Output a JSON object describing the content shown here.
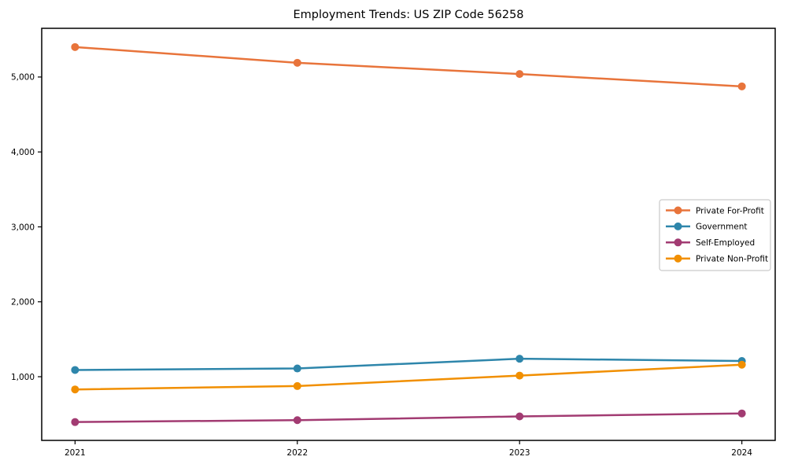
{
  "chart_data": {
    "type": "line",
    "title": "Employment Trends: US ZIP Code 56258",
    "xlabel": "",
    "ylabel": "",
    "x": [
      2021,
      2022,
      2023,
      2024
    ],
    "x_tick_labels": [
      "2021",
      "2022",
      "2023",
      "2024"
    ],
    "y_ticks": [
      1000,
      2000,
      3000,
      4000,
      5000
    ],
    "y_tick_labels": [
      "1,000",
      "2,000",
      "3,000",
      "4,000",
      "5,000"
    ],
    "xlim": [
      2020.85,
      2024.15
    ],
    "ylim": [
      150,
      5650
    ],
    "grid": false,
    "legend_position": "center-right",
    "axis_color": "#000000",
    "background_color": "#ffffff",
    "legend_border_color": "#c9c9c9",
    "series": [
      {
        "name": "Private For-Profit",
        "color": "#E8743B",
        "values": [
          5400,
          5190,
          5040,
          4875
        ]
      },
      {
        "name": "Government",
        "color": "#2E86AB",
        "values": [
          1090,
          1110,
          1240,
          1210
        ]
      },
      {
        "name": "Self-Employed",
        "color": "#A23B72",
        "values": [
          395,
          420,
          470,
          510
        ]
      },
      {
        "name": "Private Non-Profit",
        "color": "#F18F01",
        "values": [
          830,
          875,
          1015,
          1160
        ]
      }
    ]
  }
}
